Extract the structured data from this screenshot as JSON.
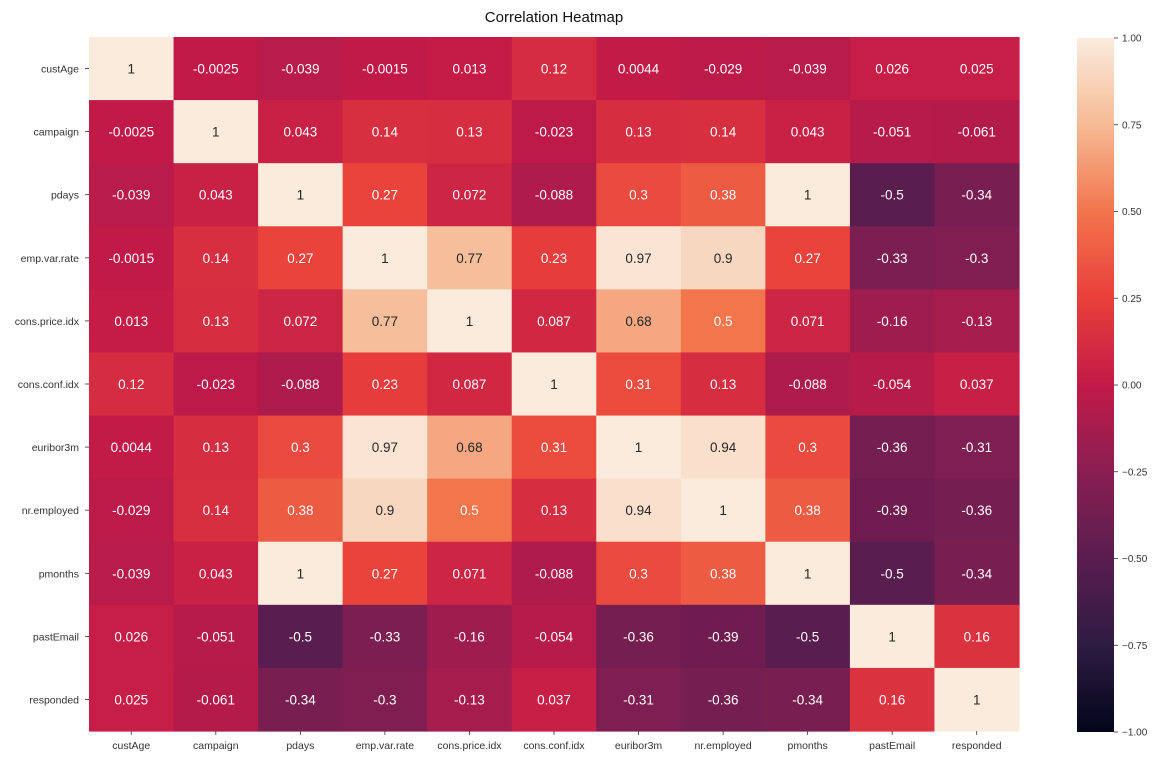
{
  "chart_data": {
    "type": "heatmap",
    "title": "Correlation Heatmap",
    "xlabel": "",
    "ylabel": "",
    "categories_x": [
      "custAge",
      "campaign",
      "pdays",
      "emp.var.rate",
      "cons.price.idx",
      "cons.conf.idx",
      "euribor3m",
      "nr.employed",
      "pmonths",
      "pastEmail",
      "responded"
    ],
    "categories_y": [
      "custAge",
      "campaign",
      "pdays",
      "emp.var.rate",
      "cons.price.idx",
      "cons.conf.idx",
      "euribor3m",
      "nr.employed",
      "pmonths",
      "pastEmail",
      "responded"
    ],
    "values": [
      [
        1,
        -0.0025,
        -0.039,
        -0.0015,
        0.013,
        0.12,
        0.0044,
        -0.029,
        -0.039,
        0.026,
        0.025
      ],
      [
        -0.0025,
        1,
        0.043,
        0.14,
        0.13,
        -0.023,
        0.13,
        0.14,
        0.043,
        -0.051,
        -0.061
      ],
      [
        -0.039,
        0.043,
        1,
        0.27,
        0.072,
        -0.088,
        0.3,
        0.38,
        1,
        -0.5,
        -0.34
      ],
      [
        -0.0015,
        0.14,
        0.27,
        1,
        0.77,
        0.23,
        0.97,
        0.9,
        0.27,
        -0.33,
        -0.3
      ],
      [
        0.013,
        0.13,
        0.072,
        0.77,
        1,
        0.087,
        0.68,
        0.5,
        0.071,
        -0.16,
        -0.13
      ],
      [
        0.12,
        -0.023,
        -0.088,
        0.23,
        0.087,
        1,
        0.31,
        0.13,
        -0.088,
        -0.054,
        0.037
      ],
      [
        0.0044,
        0.13,
        0.3,
        0.97,
        0.68,
        0.31,
        1,
        0.94,
        0.3,
        -0.36,
        -0.31
      ],
      [
        -0.029,
        0.14,
        0.38,
        0.9,
        0.5,
        0.13,
        0.94,
        1,
        0.38,
        -0.39,
        -0.36
      ],
      [
        -0.039,
        0.043,
        1,
        0.27,
        0.071,
        -0.088,
        0.3,
        0.38,
        1,
        -0.5,
        -0.34
      ],
      [
        0.026,
        -0.051,
        -0.5,
        -0.33,
        -0.16,
        -0.054,
        -0.36,
        -0.39,
        -0.5,
        1,
        0.16
      ],
      [
        0.025,
        -0.061,
        -0.34,
        -0.3,
        -0.13,
        0.037,
        -0.31,
        -0.36,
        -0.34,
        0.16,
        1
      ]
    ],
    "value_labels": [
      [
        "1",
        "-0.0025",
        "-0.039",
        "-0.0015",
        "0.013",
        "0.12",
        "0.0044",
        "-0.029",
        "-0.039",
        "0.026",
        "0.025"
      ],
      [
        "-0.0025",
        "1",
        "0.043",
        "0.14",
        "0.13",
        "-0.023",
        "0.13",
        "0.14",
        "0.043",
        "-0.051",
        "-0.061"
      ],
      [
        "-0.039",
        "0.043",
        "1",
        "0.27",
        "0.072",
        "-0.088",
        "0.3",
        "0.38",
        "1",
        "-0.5",
        "-0.34"
      ],
      [
        "-0.0015",
        "0.14",
        "0.27",
        "1",
        "0.77",
        "0.23",
        "0.97",
        "0.9",
        "0.27",
        "-0.33",
        "-0.3"
      ],
      [
        "0.013",
        "0.13",
        "0.072",
        "0.77",
        "1",
        "0.087",
        "0.68",
        "0.5",
        "0.071",
        "-0.16",
        "-0.13"
      ],
      [
        "0.12",
        "-0.023",
        "-0.088",
        "0.23",
        "0.087",
        "1",
        "0.31",
        "0.13",
        "-0.088",
        "-0.054",
        "0.037"
      ],
      [
        "0.0044",
        "0.13",
        "0.3",
        "0.97",
        "0.68",
        "0.31",
        "1",
        "0.94",
        "0.3",
        "-0.36",
        "-0.31"
      ],
      [
        "-0.029",
        "0.14",
        "0.38",
        "0.9",
        "0.5",
        "0.13",
        "0.94",
        "1",
        "0.38",
        "-0.39",
        "-0.36"
      ],
      [
        "-0.039",
        "0.043",
        "1",
        "0.27",
        "0.071",
        "-0.088",
        "0.3",
        "0.38",
        "1",
        "-0.5",
        "-0.34"
      ],
      [
        "0.026",
        "-0.051",
        "-0.5",
        "-0.33",
        "-0.16",
        "-0.054",
        "-0.36",
        "-0.39",
        "-0.5",
        "1",
        "0.16"
      ],
      [
        "0.025",
        "-0.061",
        "-0.34",
        "-0.3",
        "-0.13",
        "0.037",
        "-0.31",
        "-0.36",
        "-0.34",
        "0.16",
        "1"
      ]
    ],
    "vmin": -1,
    "vmax": 1,
    "colormap": "rocket",
    "colorbar": {
      "ticks": [
        1,
        0.75,
        0.5,
        0.25,
        0,
        -0.25,
        -0.5,
        -0.75,
        -1
      ],
      "tick_labels": [
        "1.00",
        "0.75",
        "0.50",
        "0.25",
        "0.00",
        "−0.25",
        "−0.50",
        "−0.75",
        "−1.00"
      ]
    },
    "grid": false,
    "legend": "colorbar-right"
  }
}
